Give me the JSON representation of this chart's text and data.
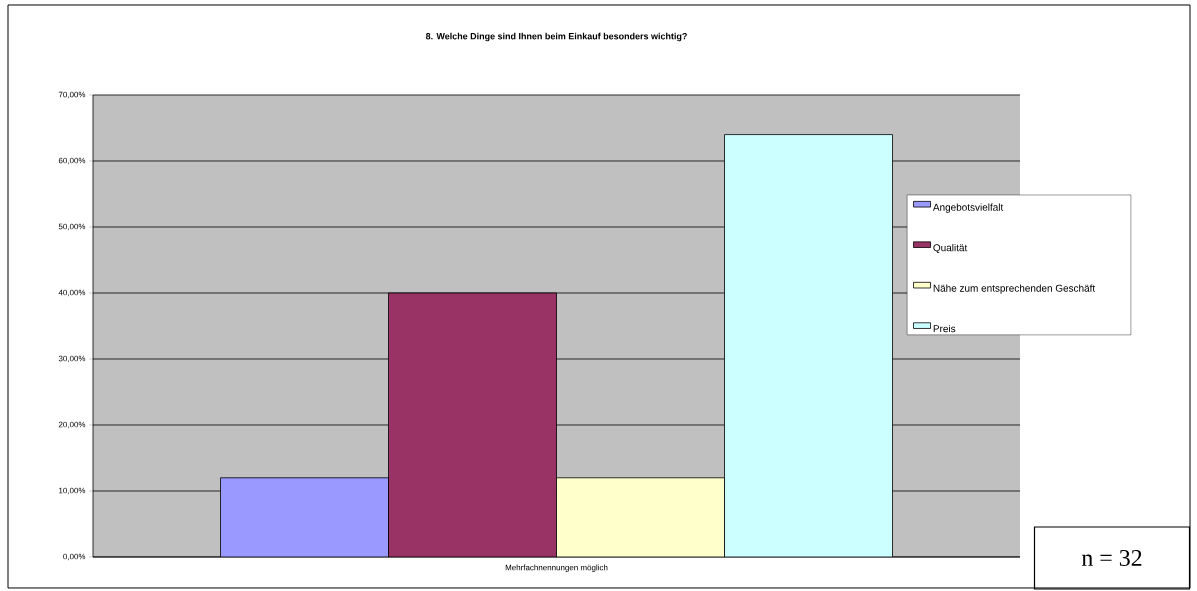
{
  "chart_data": {
    "type": "bar",
    "title": "8. Welche Dinge sind Ihnen beim Einkauf besonders wichtig?",
    "categories": [
      "Mehrfachnennungen möglich"
    ],
    "series": [
      {
        "name": "Angebotsvielfalt",
        "color": "#9999ff",
        "values": [
          12
        ]
      },
      {
        "name": "Qualität",
        "color": "#993366",
        "values": [
          40
        ]
      },
      {
        "name": "Nähe zum entsprechenden Geschäft",
        "color": "#ffffcc",
        "values": [
          12
        ]
      },
      {
        "name": "Preis",
        "color": "#ccffff",
        "values": [
          64
        ]
      }
    ],
    "ylim": [
      0,
      70
    ],
    "yticks": [
      {
        "value": 0,
        "label": "0,00%"
      },
      {
        "value": 10,
        "label": "10,00%"
      },
      {
        "value": 20,
        "label": "20,00%"
      },
      {
        "value": 30,
        "label": "30,00%"
      },
      {
        "value": 40,
        "label": "40,00%"
      },
      {
        "value": 50,
        "label": "50,00%"
      },
      {
        "value": 60,
        "label": "60,00%"
      },
      {
        "value": 70,
        "label": "70,00%"
      }
    ],
    "grid": "y",
    "legend": "right",
    "annotations": [
      "n = 32"
    ]
  }
}
